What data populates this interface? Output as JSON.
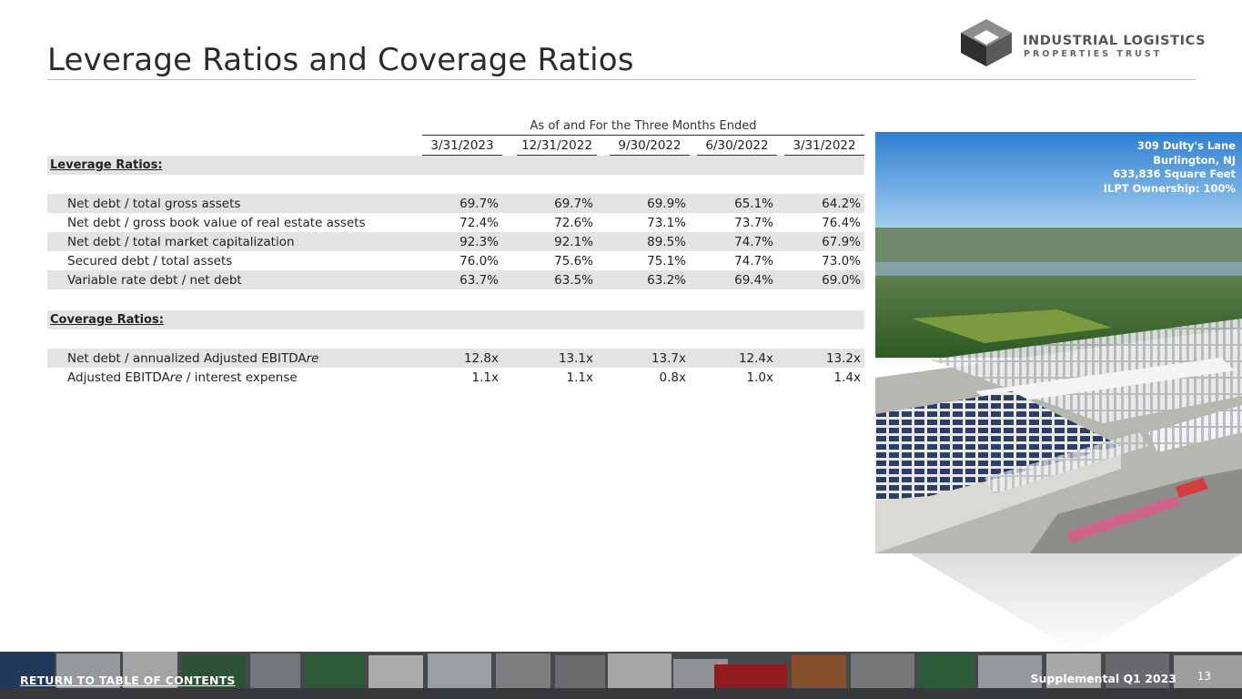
{
  "title": "Leverage Ratios and Coverage Ratios",
  "logo": {
    "name": "INDUSTRIAL LOGISTICS",
    "subtitle": "PROPERTIES TRUST"
  },
  "table": {
    "group_header": "As of and For the Three Months Ended",
    "columns": [
      "3/31/2023",
      "12/31/2022",
      "9/30/2022",
      "6/30/2022",
      "3/31/2022"
    ],
    "leverage_title": "Leverage Ratios:",
    "leverage_rows": [
      {
        "label": "Net debt / total gross assets",
        "values": [
          "69.7%",
          "69.7%",
          "69.9%",
          "65.1%",
          "64.2%"
        ]
      },
      {
        "label": "Net debt / gross book value of real estate assets",
        "values": [
          "72.4%",
          "72.6%",
          "73.1%",
          "73.7%",
          "76.4%"
        ]
      },
      {
        "label": "Net debt / total market capitalization",
        "values": [
          "92.3%",
          "92.1%",
          "89.5%",
          "74.7%",
          "67.9%"
        ]
      },
      {
        "label": "Secured debt / total assets",
        "values": [
          "76.0%",
          "75.6%",
          "75.1%",
          "74.7%",
          "73.0%"
        ]
      },
      {
        "label": "Variable rate debt / net debt",
        "values": [
          "63.7%",
          "63.5%",
          "63.2%",
          "69.4%",
          "69.0%"
        ]
      }
    ],
    "coverage_title": "Coverage Ratios:",
    "coverage_rows": [
      {
        "label_main": "Net debt / annualized Adjusted EBITDA",
        "label_italic": "re",
        "values": [
          "12.8x",
          "13.1x",
          "13.7x",
          "12.4x",
          "13.2x"
        ]
      },
      {
        "label_main": "Adjusted EBITDA",
        "label_italic": "re",
        "label_tail": " / interest expense",
        "values": [
          "1.1x",
          "1.1x",
          "0.8x",
          "1.0x",
          "1.4x"
        ]
      }
    ]
  },
  "photo_caption": {
    "line1": "309 Dulty's Lane",
    "line2": "Burlington, NJ",
    "line3": "633,836 Square Feet",
    "line4": "ILPT Ownership: 100%"
  },
  "footer": {
    "link": "RETURN TO TABLE OF CONTENTS",
    "report": "Supplemental Q1 2023",
    "page": "13"
  }
}
